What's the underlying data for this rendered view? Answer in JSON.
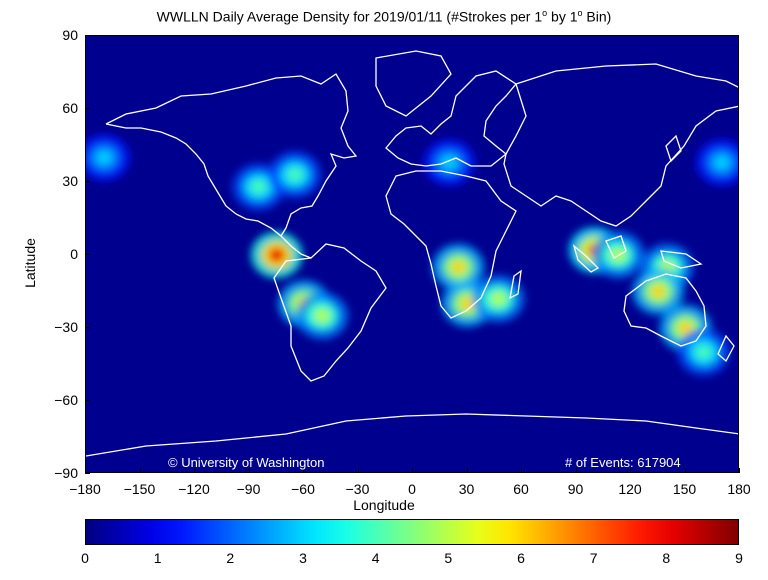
{
  "title_prefix": "WWLLN Daily Average Density for 2019/01/11 (#Strokes per 1",
  "title_mid": " by 1",
  "title_suffix": " Bin)",
  "degree_symbol": "o",
  "xlabel": "Longitude",
  "ylabel": "Latitude",
  "x_ticks": [
    "−180",
    "−150",
    "−120",
    "−90",
    "−60",
    "−30",
    "0",
    "30",
    "60",
    "90",
    "120",
    "150",
    "180"
  ],
  "y_ticks": [
    "90",
    "60",
    "30",
    "0",
    "−30",
    "−60",
    "−90"
  ],
  "colorbar_ticks": [
    "0",
    "1",
    "2",
    "3",
    "4",
    "5",
    "6",
    "7",
    "8",
    "9"
  ],
  "copyright": "© University of Washington",
  "events_label": "# of Events: 617904",
  "colors": {
    "ocean": "#00008f",
    "coast": "#ffffff"
  },
  "chart_data": {
    "type": "heatmap",
    "xlabel": "Longitude",
    "ylabel": "Latitude",
    "xlim": [
      -180,
      180
    ],
    "ylim": [
      -90,
      90
    ],
    "colorbar_range": [
      0,
      9
    ],
    "colormap": "jet",
    "hotspots": [
      {
        "region": "Amazon / NW South America",
        "lon": -75,
        "lat": 0,
        "value": 8
      },
      {
        "region": "Central South America",
        "lon": -60,
        "lat": -20,
        "value": 6
      },
      {
        "region": "Southern Brazil",
        "lon": -50,
        "lat": -25,
        "value": 5
      },
      {
        "region": "Central Africa",
        "lon": 25,
        "lat": -5,
        "value": 6
      },
      {
        "region": "Southern Africa",
        "lon": 30,
        "lat": -20,
        "value": 6
      },
      {
        "region": "Madagascar",
        "lon": 47,
        "lat": -18,
        "value": 5
      },
      {
        "region": "Sumatra / Malaysia",
        "lon": 100,
        "lat": 2,
        "value": 7
      },
      {
        "region": "Borneo",
        "lon": 113,
        "lat": 0,
        "value": 5
      },
      {
        "region": "New Guinea",
        "lon": 140,
        "lat": -5,
        "value": 5
      },
      {
        "region": "Northern Australia",
        "lon": 135,
        "lat": -15,
        "value": 6
      },
      {
        "region": "Eastern Australia",
        "lon": 150,
        "lat": -30,
        "value": 6
      },
      {
        "region": "Gulf of Mexico / US Southeast",
        "lon": -85,
        "lat": 28,
        "value": 4
      },
      {
        "region": "Western Atlantic",
        "lon": -65,
        "lat": 33,
        "value": 4
      },
      {
        "region": "Mediterranean",
        "lon": 20,
        "lat": 38,
        "value": 3
      },
      {
        "region": "North Pacific (west)",
        "lon": 170,
        "lat": 38,
        "value": 3
      },
      {
        "region": "North Pacific (east)",
        "lon": -170,
        "lat": 40,
        "value": 3
      },
      {
        "region": "Tasman Sea",
        "lon": 160,
        "lat": -40,
        "value": 4
      }
    ]
  }
}
